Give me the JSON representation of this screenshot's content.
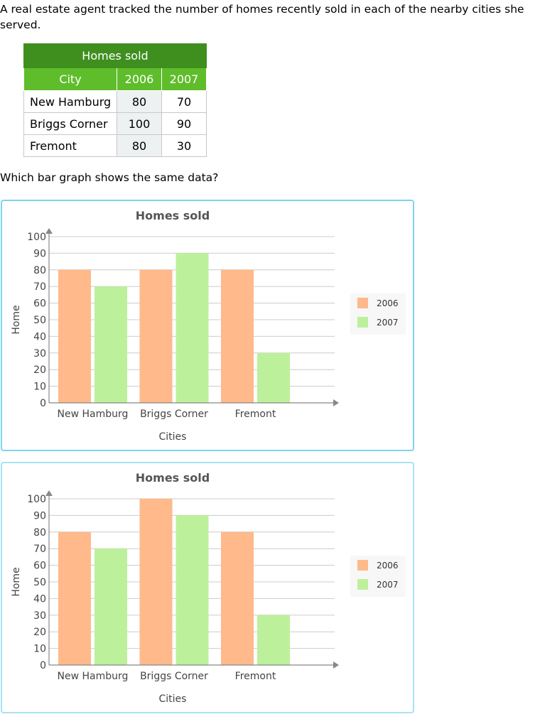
{
  "question_text": "A real estate agent tracked the number of homes recently sold in each of the nearby cities she served.",
  "prompt_text": "Which bar graph shows the same data?",
  "table": {
    "title": "Homes sold",
    "headers": [
      "City",
      "2006",
      "2007"
    ],
    "rows": [
      {
        "city": "New Hamburg",
        "v2006": "80",
        "v2007": "70"
      },
      {
        "city": "Briggs Corner",
        "v2006": "100",
        "v2007": "90"
      },
      {
        "city": "Fremont",
        "v2006": "80",
        "v2007": "30"
      }
    ]
  },
  "colors": {
    "series_2006": "#ffb98a",
    "series_2007": "#bdf09b",
    "grid": "#cccccc",
    "axis": "#888888",
    "choice_border": "#9fdff1",
    "table_title_bg": "#3f8f1f",
    "table_header_bg": "#5fbd2b"
  },
  "chart_data": [
    {
      "type": "bar",
      "title": "Homes sold",
      "xlabel": "Cities",
      "ylabel": "Home",
      "ylim": [
        0,
        100
      ],
      "yticks": [
        "0",
        "10",
        "20",
        "30",
        "40",
        "50",
        "60",
        "70",
        "80",
        "90",
        "100"
      ],
      "categories": [
        "New Hamburg",
        "Briggs Corner",
        "Fremont"
      ],
      "series": [
        {
          "name": "2006",
          "values": [
            80,
            80,
            80
          ]
        },
        {
          "name": "2007",
          "values": [
            70,
            90,
            30
          ]
        }
      ],
      "grid": true,
      "legend": "right"
    },
    {
      "type": "bar",
      "title": "Homes sold",
      "xlabel": "Cities",
      "ylabel": "Home",
      "ylim": [
        0,
        100
      ],
      "yticks": [
        "0",
        "10",
        "20",
        "30",
        "40",
        "50",
        "60",
        "70",
        "80",
        "90",
        "100"
      ],
      "categories": [
        "New Hamburg",
        "Briggs Corner",
        "Fremont"
      ],
      "series": [
        {
          "name": "2006",
          "values": [
            80,
            100,
            80
          ]
        },
        {
          "name": "2007",
          "values": [
            70,
            90,
            30
          ]
        }
      ],
      "grid": true,
      "legend": "right"
    }
  ]
}
